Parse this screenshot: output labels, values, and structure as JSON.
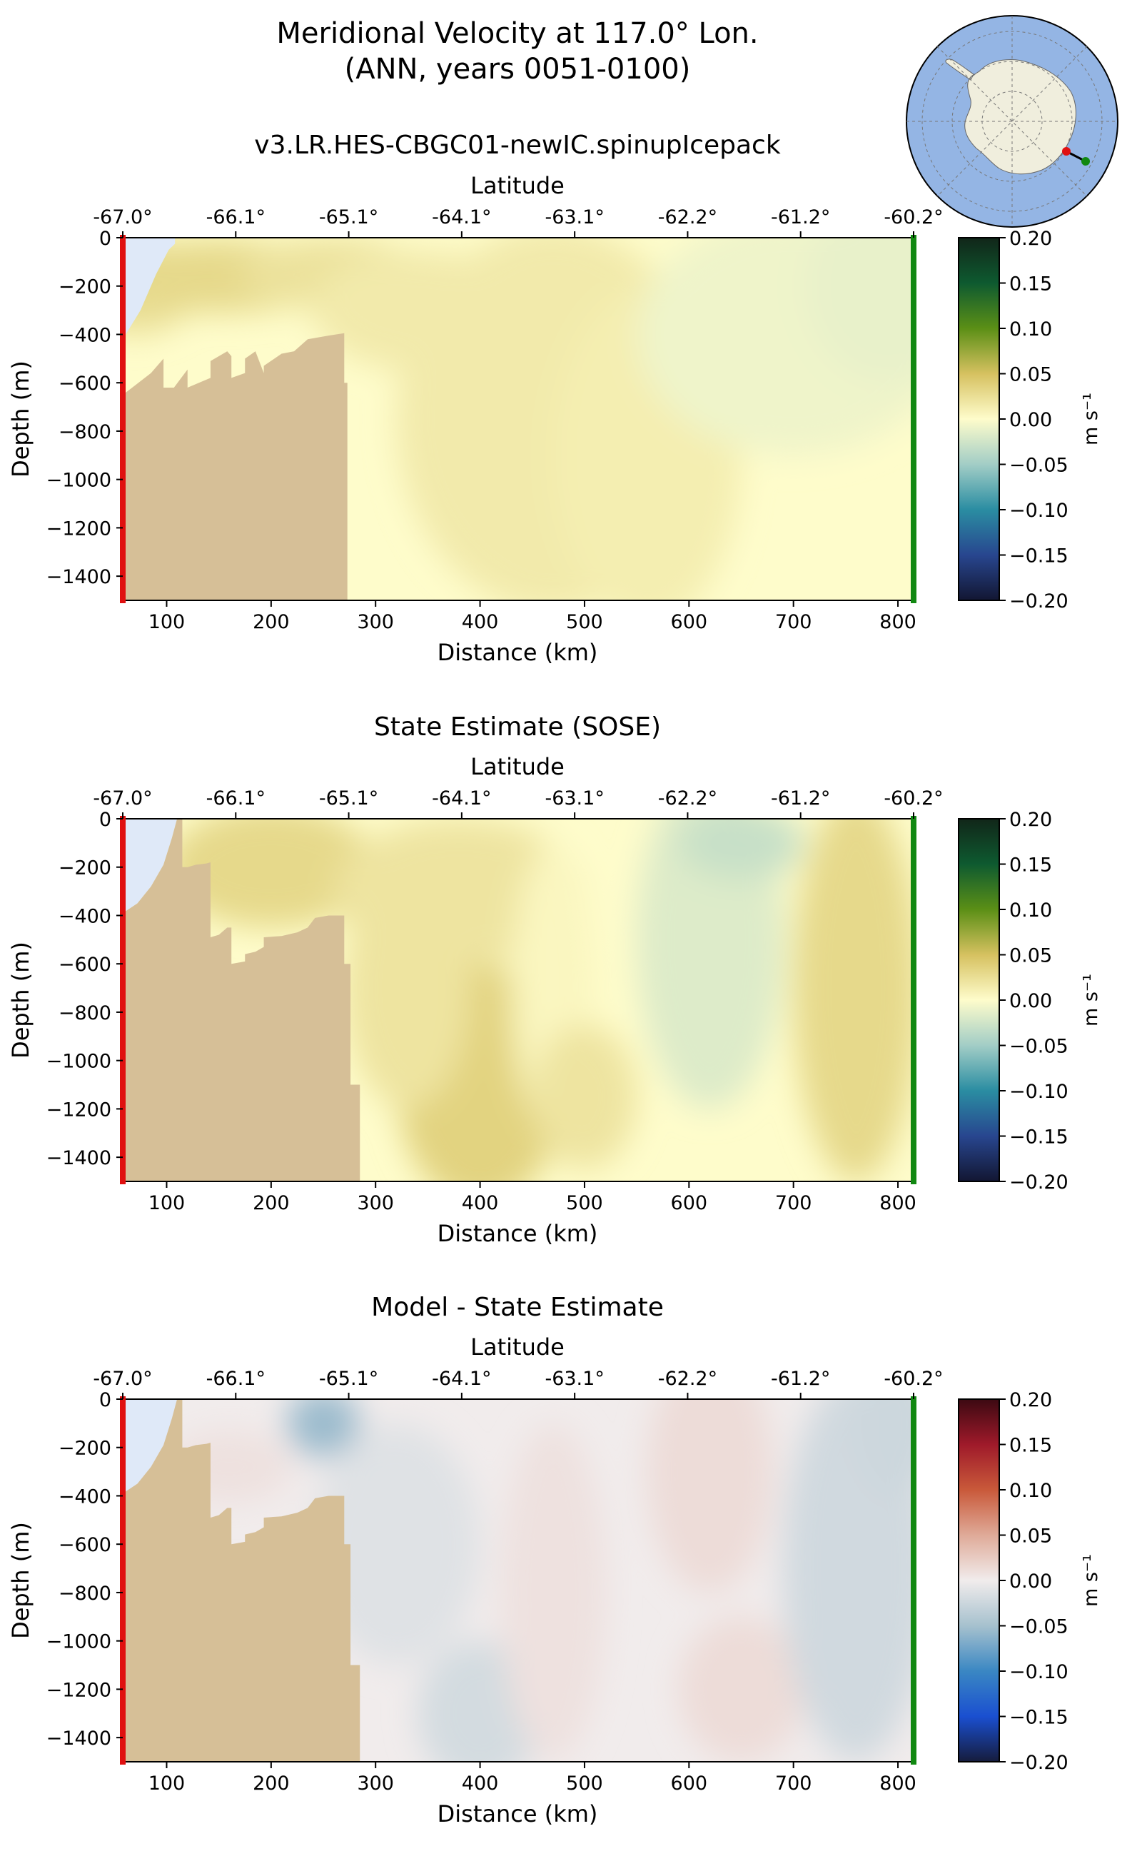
{
  "figure": {
    "title_line1": "Meridional Velocity at 117.0° Lon.",
    "title_line2": "(ANN, years 0051-0100)"
  },
  "colors": {
    "land": "#d6bf97",
    "ice_shelf": "#dfe9f8",
    "start_marker": "#e01010",
    "end_marker": "#118811",
    "ocean_globe": "#94b5e4",
    "continent_globe": "#f0eedd"
  },
  "inset_map": {
    "projection": "south-polar",
    "track_start_color": "red",
    "track_end_color": "green"
  },
  "chart_data": [
    {
      "type": "heatmap",
      "title": "v3.LR.HES-CBGC01-newIC.spinupIcepack",
      "xlabel": "Distance (km)",
      "x2label": "Latitude",
      "ylabel": "Depth (m)",
      "xlim": [
        58,
        815
      ],
      "ylim": [
        -1500,
        0
      ],
      "xticks": [
        100,
        200,
        300,
        400,
        500,
        600,
        700,
        800
      ],
      "yticks": [
        0,
        -200,
        -400,
        -600,
        -800,
        -1000,
        -1200,
        -1400
      ],
      "lat_ticks": [
        "-67.0°",
        "-66.1°",
        "-65.1°",
        "-64.1°",
        "-63.1°",
        "-62.2°",
        "-61.2°",
        "-60.2°"
      ],
      "colorbar": {
        "label": "m s⁻¹",
        "ticks": [
          "0.20",
          "0.15",
          "0.10",
          "0.05",
          "0.00",
          "−0.05",
          "−0.10",
          "−0.15",
          "−0.20"
        ],
        "range": [
          -0.2,
          0.2
        ],
        "colormap": "delta"
      },
      "bathymetry": [
        [
          58,
          -1500
        ],
        [
          58,
          -650
        ],
        [
          70,
          -610
        ],
        [
          85,
          -560
        ],
        [
          97,
          -500
        ],
        [
          97,
          -620
        ],
        [
          107,
          -620
        ],
        [
          120,
          -545
        ],
        [
          120,
          -620
        ],
        [
          142,
          -580
        ],
        [
          142,
          -510
        ],
        [
          158,
          -470
        ],
        [
          162,
          -490
        ],
        [
          162,
          -580
        ],
        [
          175,
          -560
        ],
        [
          175,
          -500
        ],
        [
          185,
          -470
        ],
        [
          193,
          -560
        ],
        [
          193,
          -530
        ],
        [
          210,
          -480
        ],
        [
          222,
          -470
        ],
        [
          235,
          -420
        ],
        [
          255,
          -405
        ],
        [
          270,
          -395
        ],
        [
          270,
          -600
        ],
        [
          273,
          -600
        ],
        [
          273,
          -1500
        ]
      ],
      "ice_shelf": [
        [
          58,
          -420
        ],
        [
          75,
          -300
        ],
        [
          90,
          -150
        ],
        [
          102,
          -50
        ],
        [
          108,
          -25
        ],
        [
          108,
          0
        ],
        [
          58,
          0
        ]
      ],
      "field": [
        {
          "x": 70,
          "depth": -200,
          "v": 0.025,
          "rx": 60,
          "ry": 200
        },
        {
          "x": 150,
          "depth": -160,
          "v": 0.03,
          "rx": 120,
          "ry": 150
        },
        {
          "x": 260,
          "depth": -150,
          "v": 0.022,
          "rx": 90,
          "ry": 150
        },
        {
          "x": 340,
          "depth": -300,
          "v": 0.015,
          "rx": 100,
          "ry": 250
        },
        {
          "x": 470,
          "depth": -750,
          "v": 0.015,
          "rx": 150,
          "ry": 800
        },
        {
          "x": 560,
          "depth": -900,
          "v": 0.012,
          "rx": 90,
          "ry": 700
        },
        {
          "x": 700,
          "depth": -400,
          "v": -0.008,
          "rx": 150,
          "ry": 500
        },
        {
          "x": 790,
          "depth": -200,
          "v": -0.012,
          "rx": 80,
          "ry": 400
        }
      ]
    },
    {
      "type": "heatmap",
      "title": "State Estimate (SOSE)",
      "xlabel": "Distance (km)",
      "x2label": "Latitude",
      "ylabel": "Depth (m)",
      "xlim": [
        58,
        815
      ],
      "ylim": [
        -1500,
        0
      ],
      "xticks": [
        100,
        200,
        300,
        400,
        500,
        600,
        700,
        800
      ],
      "yticks": [
        0,
        -200,
        -400,
        -600,
        -800,
        -1000,
        -1200,
        -1400
      ],
      "lat_ticks": [
        "-67.0°",
        "-66.1°",
        "-65.1°",
        "-64.1°",
        "-63.1°",
        "-62.2°",
        "-61.2°",
        "-60.2°"
      ],
      "colorbar": {
        "label": "m s⁻¹",
        "ticks": [
          "0.20",
          "0.15",
          "0.10",
          "0.05",
          "0.00",
          "−0.05",
          "−0.10",
          "−0.15",
          "−0.20"
        ],
        "range": [
          -0.2,
          0.2
        ],
        "colormap": "delta"
      },
      "bathymetry": [
        [
          58,
          -1500
        ],
        [
          58,
          -390
        ],
        [
          72,
          -350
        ],
        [
          85,
          -280
        ],
        [
          97,
          -190
        ],
        [
          105,
          -80
        ],
        [
          110,
          0
        ],
        [
          115,
          0
        ],
        [
          115,
          -200
        ],
        [
          120,
          -200
        ],
        [
          128,
          -190
        ],
        [
          138,
          -185
        ],
        [
          142,
          -180
        ],
        [
          142,
          -490
        ],
        [
          150,
          -480
        ],
        [
          158,
          -450
        ],
        [
          162,
          -450
        ],
        [
          162,
          -600
        ],
        [
          175,
          -590
        ],
        [
          175,
          -560
        ],
        [
          185,
          -550
        ],
        [
          193,
          -530
        ],
        [
          193,
          -490
        ],
        [
          210,
          -485
        ],
        [
          225,
          -470
        ],
        [
          235,
          -450
        ],
        [
          242,
          -410
        ],
        [
          255,
          -400
        ],
        [
          270,
          -400
        ],
        [
          270,
          -600
        ],
        [
          276,
          -600
        ],
        [
          276,
          -1100
        ],
        [
          285,
          -1100
        ],
        [
          285,
          -1500
        ]
      ],
      "ice_shelf": [
        [
          58,
          -390
        ],
        [
          72,
          -350
        ],
        [
          85,
          -280
        ],
        [
          97,
          -190
        ],
        [
          105,
          -80
        ],
        [
          110,
          0
        ],
        [
          58,
          0
        ]
      ],
      "field": [
        {
          "x": 245,
          "depth": -110,
          "v": 0.07,
          "rx": 35,
          "ry": 120
        },
        {
          "x": 200,
          "depth": -200,
          "v": 0.03,
          "rx": 100,
          "ry": 250
        },
        {
          "x": 380,
          "depth": -300,
          "v": 0.02,
          "rx": 120,
          "ry": 300
        },
        {
          "x": 400,
          "depth": -1100,
          "v": 0.035,
          "rx": 80,
          "ry": 500
        },
        {
          "x": 330,
          "depth": -700,
          "v": 0.02,
          "rx": 60,
          "ry": 500
        },
        {
          "x": 470,
          "depth": -700,
          "v": 0.005,
          "rx": 40,
          "ry": 600
        },
        {
          "x": 500,
          "depth": -1150,
          "v": 0.02,
          "rx": 50,
          "ry": 300
        },
        {
          "x": 620,
          "depth": -500,
          "v": -0.018,
          "rx": 70,
          "ry": 700
        },
        {
          "x": 650,
          "depth": -100,
          "v": -0.03,
          "rx": 60,
          "ry": 150
        },
        {
          "x": 760,
          "depth": -700,
          "v": 0.03,
          "rx": 60,
          "ry": 800
        }
      ]
    },
    {
      "type": "heatmap",
      "title": "Model - State Estimate",
      "xlabel": "Distance (km)",
      "x2label": "Latitude",
      "ylabel": "Depth (m)",
      "xlim": [
        58,
        815
      ],
      "ylim": [
        -1500,
        0
      ],
      "xticks": [
        100,
        200,
        300,
        400,
        500,
        600,
        700,
        800
      ],
      "yticks": [
        0,
        -200,
        -400,
        -600,
        -800,
        -1000,
        -1200,
        -1400
      ],
      "lat_ticks": [
        "-67.0°",
        "-66.1°",
        "-65.1°",
        "-64.1°",
        "-63.1°",
        "-62.2°",
        "-61.2°",
        "-60.2°"
      ],
      "colorbar": {
        "label": "m s⁻¹",
        "ticks": [
          "0.20",
          "0.15",
          "0.10",
          "0.05",
          "0.00",
          "−0.05",
          "−0.10",
          "−0.15",
          "−0.20"
        ],
        "range": [
          -0.2,
          0.2
        ],
        "colormap": "balance"
      },
      "bathymetry": [
        [
          58,
          -1500
        ],
        [
          58,
          -390
        ],
        [
          72,
          -350
        ],
        [
          85,
          -280
        ],
        [
          97,
          -190
        ],
        [
          105,
          -80
        ],
        [
          110,
          0
        ],
        [
          115,
          0
        ],
        [
          115,
          -200
        ],
        [
          120,
          -200
        ],
        [
          128,
          -190
        ],
        [
          138,
          -185
        ],
        [
          142,
          -180
        ],
        [
          142,
          -490
        ],
        [
          150,
          -480
        ],
        [
          158,
          -450
        ],
        [
          162,
          -450
        ],
        [
          162,
          -600
        ],
        [
          175,
          -590
        ],
        [
          175,
          -560
        ],
        [
          185,
          -550
        ],
        [
          193,
          -530
        ],
        [
          193,
          -490
        ],
        [
          210,
          -485
        ],
        [
          225,
          -470
        ],
        [
          235,
          -450
        ],
        [
          242,
          -410
        ],
        [
          255,
          -400
        ],
        [
          270,
          -400
        ],
        [
          270,
          -600
        ],
        [
          276,
          -600
        ],
        [
          276,
          -1100
        ],
        [
          285,
          -1100
        ],
        [
          285,
          -1500
        ]
      ],
      "ice_shelf": [
        [
          58,
          -390
        ],
        [
          72,
          -350
        ],
        [
          85,
          -280
        ],
        [
          97,
          -190
        ],
        [
          105,
          -80
        ],
        [
          110,
          0
        ],
        [
          58,
          0
        ]
      ],
      "field": [
        {
          "x": 250,
          "depth": -100,
          "v": -0.055,
          "rx": 35,
          "ry": 140
        },
        {
          "x": 160,
          "depth": -280,
          "v": 0.008,
          "rx": 60,
          "ry": 150
        },
        {
          "x": 320,
          "depth": -600,
          "v": -0.012,
          "rx": 80,
          "ry": 500
        },
        {
          "x": 400,
          "depth": -1300,
          "v": -0.02,
          "rx": 60,
          "ry": 300
        },
        {
          "x": 470,
          "depth": -800,
          "v": 0.008,
          "rx": 50,
          "ry": 700
        },
        {
          "x": 620,
          "depth": -300,
          "v": 0.012,
          "rx": 60,
          "ry": 500
        },
        {
          "x": 650,
          "depth": -1200,
          "v": 0.012,
          "rx": 60,
          "ry": 300
        },
        {
          "x": 760,
          "depth": -700,
          "v": -0.022,
          "rx": 70,
          "ry": 800
        },
        {
          "x": 800,
          "depth": -100,
          "v": -0.025,
          "rx": 40,
          "ry": 300
        }
      ]
    }
  ]
}
